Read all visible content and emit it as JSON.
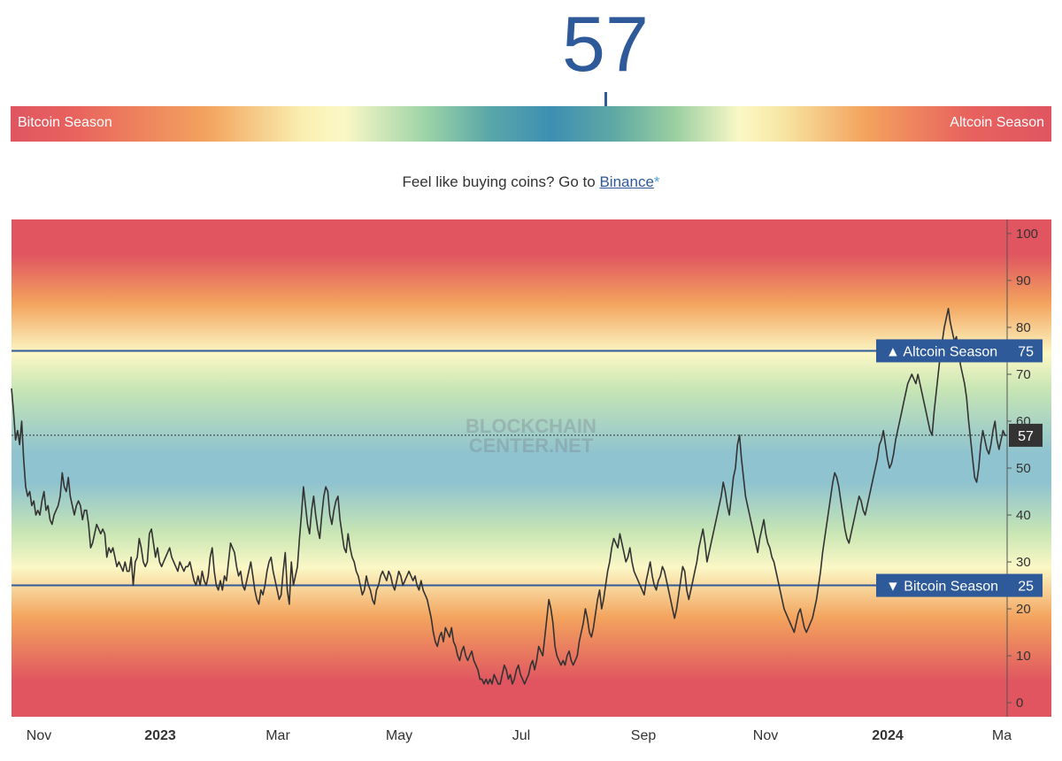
{
  "gauge": {
    "value": "57",
    "value_num": 57,
    "left_label": "Bitcoin Season",
    "right_label": "Altcoin Season"
  },
  "promo": {
    "text": "Feel like buying coins? Go to ",
    "link_text": "Binance",
    "asterisk": "*"
  },
  "watermark": [
    "BLOCKCHAIN",
    "CENTER.NET"
  ],
  "chart_data": {
    "type": "line",
    "x_tick_labels": [
      "Nov",
      "2023",
      "Mar",
      "May",
      "Jul",
      "Sep",
      "Nov",
      "2024",
      "Ma"
    ],
    "ylim": [
      -3,
      103
    ],
    "y_ticks": [
      0,
      10,
      20,
      30,
      40,
      50,
      60,
      70,
      80,
      90,
      100
    ],
    "y_axis_side": "right",
    "thresholds": [
      {
        "label": "▲ Altcoin Season",
        "value": 75
      },
      {
        "label": "▼ Bitcoin Season",
        "value": 25
      }
    ],
    "current": {
      "label": "57",
      "value": 57
    },
    "colors": {
      "line": "#333333",
      "threshold": "#2e5a99",
      "badge": "#2e5a99",
      "current_badge": "#333333",
      "red": "#e05560",
      "blue": "#8fc3cf",
      "yellow": "#fbf8c6"
    },
    "series": [
      {
        "values": [
          67,
          62,
          56,
          58,
          55,
          60,
          52,
          46,
          44,
          45,
          42,
          43,
          40,
          41,
          40,
          43,
          45,
          41,
          42,
          39,
          38,
          40,
          41,
          42,
          44,
          49,
          46,
          45,
          48,
          44,
          42,
          40,
          42,
          43,
          42,
          39,
          41,
          41,
          38,
          33,
          34,
          36,
          38,
          37,
          36,
          37,
          36,
          31,
          33,
          32,
          33,
          31,
          29,
          30,
          29,
          28,
          30,
          28,
          28,
          31,
          25,
          30,
          31,
          35,
          33,
          30,
          29,
          30,
          36,
          37,
          34,
          31,
          33,
          30,
          29,
          30,
          31,
          32,
          33,
          31,
          30,
          29,
          28,
          30,
          29,
          28,
          29,
          29,
          30,
          28,
          26,
          25,
          27,
          25,
          28,
          26,
          25,
          27,
          31,
          33,
          28,
          25,
          24,
          26,
          24,
          27,
          26,
          30,
          34,
          33,
          32,
          29,
          27,
          28,
          25,
          24,
          26,
          28,
          30,
          27,
          24,
          22,
          21,
          24,
          23,
          25,
          28,
          30,
          31,
          28,
          26,
          24,
          22,
          23,
          28,
          32,
          24,
          21,
          30,
          25,
          27,
          29,
          35,
          40,
          46,
          42,
          38,
          36,
          41,
          44,
          40,
          37,
          35,
          40,
          44,
          46,
          45,
          40,
          38,
          41,
          43,
          44,
          39,
          36,
          33,
          32,
          36,
          33,
          31,
          30,
          28,
          27,
          25,
          23,
          24,
          27,
          25,
          24,
          22,
          21,
          24,
          25,
          27,
          28,
          27,
          26,
          28,
          27,
          25,
          24,
          26,
          28,
          27,
          25,
          26,
          27,
          28,
          27,
          26,
          27,
          25,
          24,
          26,
          24,
          23,
          22,
          20,
          18,
          15,
          13,
          12,
          14,
          15,
          13,
          16,
          15,
          14,
          16,
          13,
          12,
          10,
          9,
          11,
          12,
          10,
          9,
          10,
          11,
          9,
          8,
          7,
          5,
          5,
          4,
          5,
          4,
          5,
          4,
          6,
          5,
          4,
          4,
          6,
          8,
          7,
          5,
          6,
          4,
          5,
          7,
          8,
          6,
          5,
          4,
          5,
          6,
          8,
          9,
          7,
          9,
          12,
          11,
          10,
          14,
          18,
          22,
          20,
          17,
          12,
          10,
          9,
          8,
          9,
          8,
          10,
          11,
          9,
          8,
          9,
          10,
          13,
          15,
          17,
          20,
          18,
          15,
          14,
          16,
          19,
          22,
          24,
          20,
          22,
          25,
          28,
          30,
          33,
          35,
          34,
          33,
          36,
          34,
          32,
          30,
          31,
          33,
          30,
          28,
          27,
          26,
          25,
          24,
          23,
          26,
          28,
          30,
          27,
          25,
          24,
          26,
          27,
          29,
          28,
          26,
          24,
          22,
          20,
          18,
          20,
          23,
          26,
          29,
          28,
          24,
          22,
          24,
          26,
          28,
          30,
          33,
          35,
          37,
          34,
          30,
          32,
          34,
          36,
          38,
          40,
          42,
          44,
          47,
          45,
          42,
          40,
          44,
          48,
          50,
          55,
          57,
          52,
          48,
          44,
          42,
          40,
          38,
          36,
          34,
          32,
          35,
          37,
          39,
          36,
          34,
          33,
          31,
          30,
          28,
          26,
          24,
          22,
          20,
          19,
          18,
          17,
          16,
          15,
          17,
          19,
          20,
          18,
          16,
          15,
          16,
          17,
          18,
          20,
          22,
          25,
          28,
          32,
          35,
          38,
          41,
          44,
          47,
          49,
          48,
          46,
          43,
          40,
          37,
          35,
          34,
          36,
          38,
          40,
          42,
          44,
          43,
          41,
          40,
          42,
          44,
          46,
          48,
          50,
          52,
          55,
          56,
          58,
          55,
          52,
          50,
          51,
          53,
          56,
          58,
          60,
          62,
          64,
          66,
          68,
          69,
          70,
          69,
          68,
          70,
          68,
          66,
          64,
          62,
          60,
          58,
          57,
          62,
          66,
          70,
          74,
          77,
          80,
          82,
          84,
          81,
          79,
          77,
          78,
          75,
          72,
          70,
          68,
          65,
          60,
          56,
          52,
          48,
          47,
          50,
          55,
          58,
          56,
          54,
          53,
          55,
          58,
          60,
          56,
          54,
          56,
          58,
          57,
          57
        ]
      }
    ]
  }
}
